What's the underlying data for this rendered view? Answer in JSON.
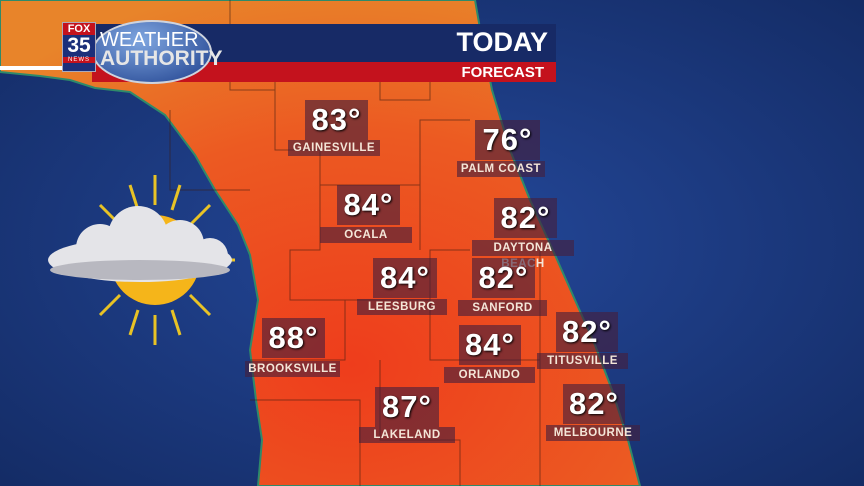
{
  "header": {
    "title": "TODAY",
    "subtitle": "FORECAST"
  },
  "logo": {
    "station": "FOX",
    "channel": "35",
    "news": "NEWS",
    "line1": "WEATHER",
    "line2": "AUTHORITY"
  },
  "conditions_icon": "partly-cloudy-icon",
  "colors": {
    "ocean": "#1d3a7e",
    "land": "#e8501e",
    "banner_blue": "#172a66",
    "banner_red": "#c4121d"
  },
  "cities": [
    {
      "name": "GAINESVILLE",
      "temp": "83°"
    },
    {
      "name": "PALM COAST",
      "temp": "76°"
    },
    {
      "name": "OCALA",
      "temp": "84°"
    },
    {
      "name": "DAYTONA BEACH",
      "temp": "82°"
    },
    {
      "name": "LEESBURG",
      "temp": "84°"
    },
    {
      "name": "SANFORD",
      "temp": "82°"
    },
    {
      "name": "BROOKSVILLE",
      "temp": "88°"
    },
    {
      "name": "ORLANDO",
      "temp": "84°"
    },
    {
      "name": "TITUSVILLE",
      "temp": "82°"
    },
    {
      "name": "LAKELAND",
      "temp": "87°"
    },
    {
      "name": "MELBOURNE",
      "temp": "82°"
    }
  ]
}
